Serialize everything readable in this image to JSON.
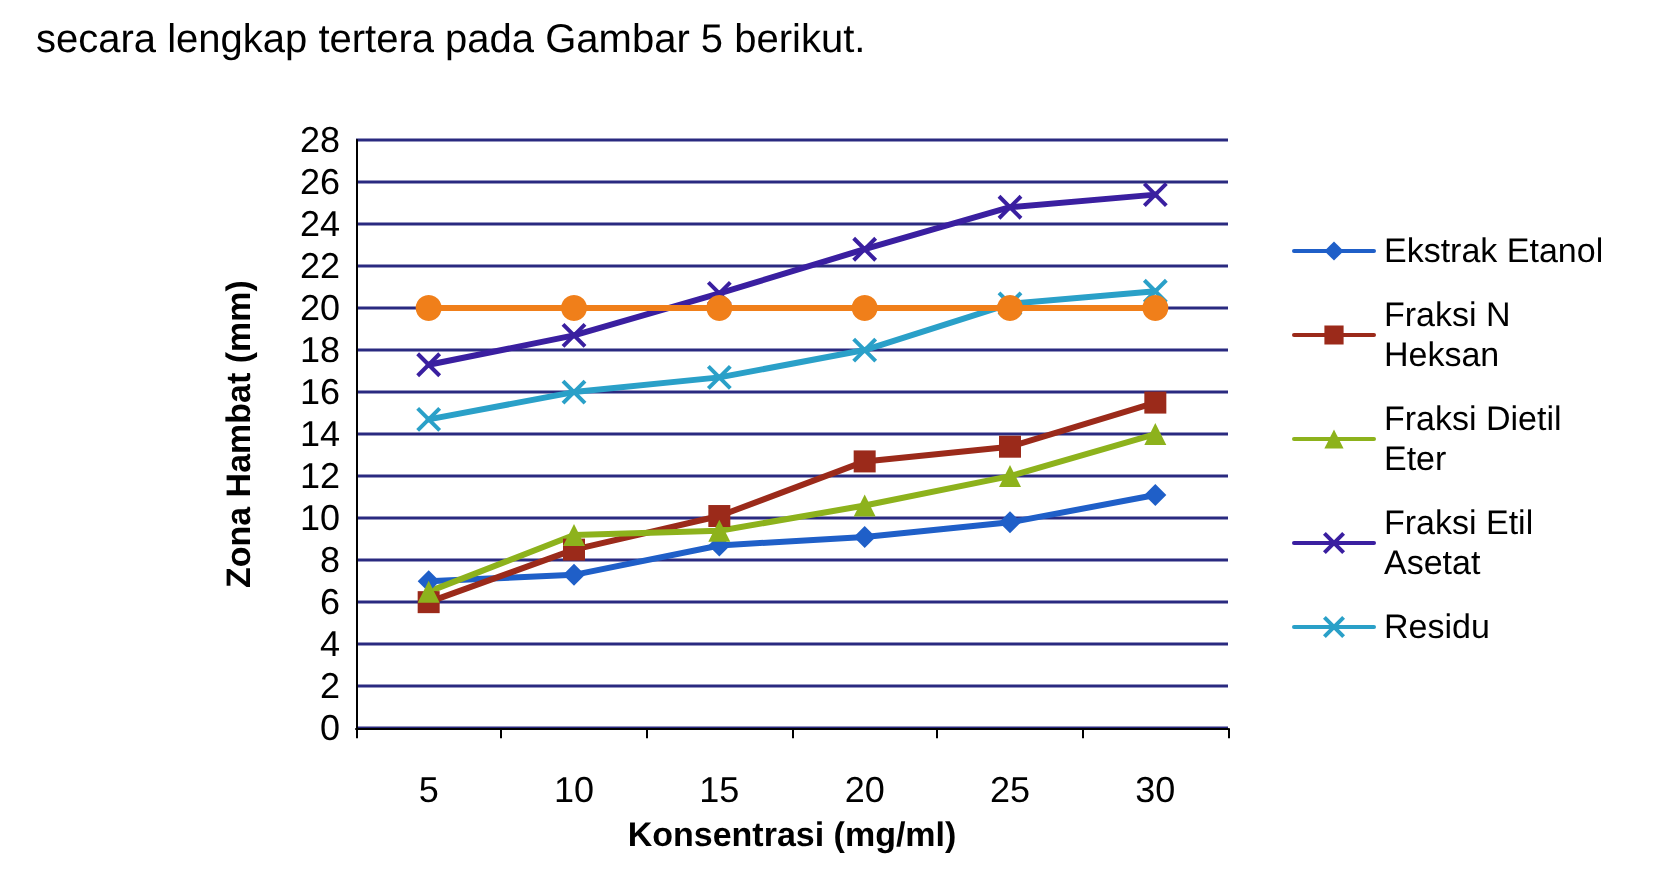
{
  "chart_data": {
    "type": "line",
    "xlabel": "Konsentrasi (mg/ml)",
    "ylabel": "Zona Hambat (mm)",
    "annotations": [
      "secara lengkap tertera pada Gambar 5 berikut."
    ],
    "categories": [
      "5",
      "10",
      "15",
      "20",
      "25",
      "30"
    ],
    "ylim": [
      0,
      28
    ],
    "yticks": [
      0,
      2,
      4,
      6,
      8,
      10,
      12,
      14,
      16,
      18,
      20,
      22,
      24,
      26,
      28
    ],
    "grid": "y",
    "legend": "right",
    "series": [
      {
        "name": "Ekstrak Etanol",
        "color": "#1f5fc8",
        "marker": "diamond",
        "values": [
          7,
          7.3,
          8.7,
          9.1,
          9.8,
          11.1
        ]
      },
      {
        "name": "Fraksi N Heksan",
        "color": "#9b2a1a",
        "marker": "square",
        "values": [
          6,
          8.5,
          10.1,
          12.7,
          13.4,
          15.5
        ]
      },
      {
        "name": "Fraksi Dietil Eter",
        "color": "#8db21c",
        "marker": "triangle",
        "values": [
          6.5,
          9.2,
          9.4,
          10.6,
          12,
          14
        ]
      },
      {
        "name": "Fraksi Etil Asetat",
        "color": "#3a1fa0",
        "marker": "cross",
        "values": [
          17.3,
          18.7,
          20.7,
          22.8,
          24.8,
          25.4
        ]
      },
      {
        "name": "Residu",
        "color": "#2aa0c8",
        "marker": "cross",
        "values": [
          14.7,
          16,
          16.7,
          18,
          20.2,
          20.8
        ]
      },
      {
        "color": "#f07f1a",
        "marker": "circle",
        "values": [
          20,
          20,
          20,
          20,
          20,
          20
        ]
      }
    ]
  }
}
